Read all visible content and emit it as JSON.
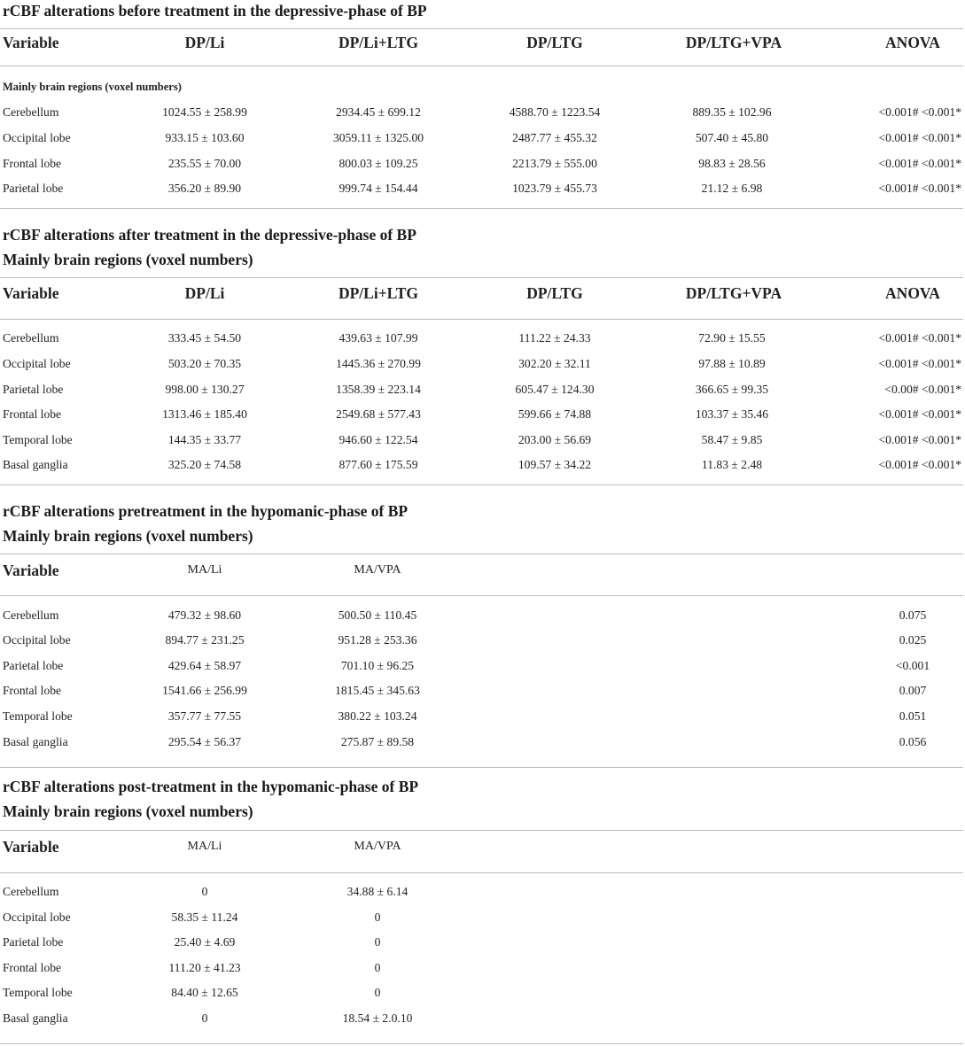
{
  "sections": [
    {
      "title": "rCBF alterations before treatment in the depressive-phase of BP",
      "subtitle": "",
      "inner_subtitle": "Mainly brain regions (voxel numbers)",
      "headers": [
        "Variable",
        "DP/Li",
        "DP/Li+LTG",
        "DP/LTG",
        "DP/LTG+VPA",
        "ANOVA"
      ],
      "rows": [
        [
          "Cerebellum",
          "1024.55 ± 258.99",
          "2934.45 ± 699.12",
          "4588.70 ± 1223.54",
          "889.35 ± 102.96",
          "<0.001# <0.001*"
        ],
        [
          "Occipital lobe",
          "933.15 ± 103.60",
          "3059.11 ± 1325.00",
          "2487.77 ± 455.32",
          "507.40 ± 45.80",
          "<0.001# <0.001*"
        ],
        [
          "Frontal lobe",
          "235.55 ± 70.00",
          "800.03 ± 109.25",
          "2213.79 ± 555.00",
          "98.83 ± 28.56",
          "<0.001# <0.001*"
        ],
        [
          "Parietal lobe",
          "356.20 ± 89.90",
          "999.74 ± 154.44",
          "1023.79 ± 455.73",
          "21.12 ± 6.98",
          "<0.001# <0.001*"
        ]
      ]
    },
    {
      "title": "rCBF alterations after treatment in the depressive-phase of BP",
      "subtitle": "Mainly brain regions (voxel numbers)",
      "inner_subtitle": "",
      "headers": [
        "Variable",
        "DP/Li",
        "DP/Li+LTG",
        "DP/LTG",
        "DP/LTG+VPA",
        "ANOVA"
      ],
      "rows": [
        [
          "Cerebellum",
          "333.45 ± 54.50",
          "439.63 ± 107.99",
          "111.22 ± 24.33",
          "72.90 ± 15.55",
          "<0.001# <0.001*"
        ],
        [
          "Occipital lobe",
          "503.20 ± 70.35",
          "1445.36 ± 270.99",
          "302.20 ± 32.11",
          "97.88 ± 10.89",
          "<0.001# <0.001*"
        ],
        [
          "Parietal lobe",
          "998.00 ± 130.27",
          "1358.39 ± 223.14",
          "605.47 ± 124.30",
          "366.65 ± 99.35",
          "<0.00# <0.001*"
        ],
        [
          "Frontal lobe",
          "1313.46 ± 185.40",
          "2549.68 ± 577.43",
          "599.66 ± 74.88",
          "103.37 ± 35.46",
          "<0.001# <0.001*"
        ],
        [
          "Temporal lobe",
          "144.35 ± 33.77",
          "946.60 ± 122.54",
          "203.00 ± 56.69",
          "58.47 ± 9.85",
          "<0.001# <0.001*"
        ],
        [
          "Basal ganglia",
          "325.20 ± 74.58",
          "877.60 ± 175.59",
          "109.57 ± 34.22",
          "11.83 ± 2.48",
          "<0.001# <0.001*"
        ]
      ]
    },
    {
      "title": "rCBF alterations pretreatment in the hypomanic-phase of BP",
      "subtitle": "Mainly brain regions (voxel numbers)",
      "inner_subtitle": "",
      "headers": [
        "Variable",
        "MA/Li",
        "MA/VPA",
        "",
        "",
        ""
      ],
      "rows": [
        [
          "Cerebellum",
          "479.32 ± 98.60",
          "500.50 ± 110.45",
          "",
          "",
          "0.075"
        ],
        [
          "Occipital lobe",
          "894.77 ± 231.25",
          "951.28 ± 253.36",
          "",
          "",
          "0.025"
        ],
        [
          "Parietal lobe",
          "429.64 ± 58.97",
          "701.10 ± 96.25",
          "",
          "",
          "<0.001"
        ],
        [
          "Frontal lobe",
          "1541.66 ± 256.99",
          "1815.45 ± 345.63",
          "",
          "",
          "0.007"
        ],
        [
          "Temporal lobe",
          "357.77 ± 77.55",
          "380.22 ± 103.24",
          "",
          "",
          "0.051"
        ],
        [
          "Basal ganglia",
          "295.54 ± 56.37",
          "275.87 ± 89.58",
          "",
          "",
          "0.056"
        ]
      ]
    },
    {
      "title": "rCBF alterations post-treatment in the hypomanic-phase of BP",
      "subtitle": "Mainly brain regions (voxel numbers)",
      "inner_subtitle": "",
      "headers": [
        "Variable",
        "MA/Li",
        "MA/VPA",
        "",
        "",
        ""
      ],
      "rows": [
        [
          "Cerebellum",
          "0",
          "34.88 ± 6.14",
          "",
          "",
          ""
        ],
        [
          "Occipital lobe",
          "58.35 ± 11.24",
          "0",
          "",
          "",
          ""
        ],
        [
          "Parietal lobe",
          "25.40 ± 4.69",
          "0",
          "",
          "",
          ""
        ],
        [
          "Frontal lobe",
          "111.20 ± 41.23",
          "0",
          "",
          "",
          ""
        ],
        [
          "Temporal lobe",
          "84.40 ± 12.65",
          "0",
          "",
          "",
          ""
        ],
        [
          "Basal ganglia",
          "0",
          "18.54 ± 2.0.10",
          "",
          "",
          ""
        ]
      ]
    }
  ]
}
